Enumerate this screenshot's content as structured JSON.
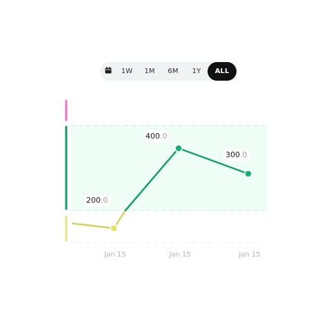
{
  "range_selector": {
    "icon": "calendar-icon",
    "options": [
      "1W",
      "1M",
      "6M",
      "1Y",
      "ALL"
    ],
    "selected": "ALL"
  },
  "colors": {
    "line_green": "#14a06d",
    "line_yellow": "#cfd45c",
    "band_fill": "#effdf7",
    "band_edge": "#c9eddc",
    "bar_pink": "#ee6fd0",
    "bar_green": "#159a68",
    "bar_yellow": "#e3e680",
    "dot_green": "#16b07a",
    "dot_yellow": "#e2e36a"
  },
  "labels": [
    {
      "int": "200",
      "dec": ".0"
    },
    {
      "int": "400",
      "dec": ".0"
    },
    {
      "int": "300",
      "dec": ".0"
    }
  ],
  "chart_data": {
    "type": "line",
    "x": [
      "Jan 15",
      "Jan 15",
      "Jan 15"
    ],
    "values": [
      200,
      400,
      300
    ],
    "xlabel": "",
    "ylabel": "",
    "grid": true
  }
}
